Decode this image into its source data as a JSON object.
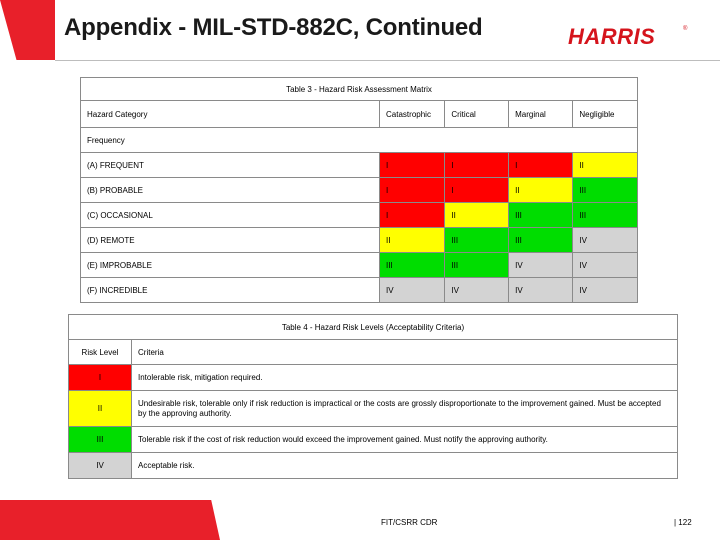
{
  "slide": {
    "title": "Appendix - MIL-STD-882C, Continued",
    "logo_text": "HARRIS"
  },
  "table3": {
    "caption": "Table 3 - Hazard Risk Assessment Matrix",
    "category_label": "Hazard Category",
    "columns": [
      "Catastrophic",
      "Critical",
      "Marginal",
      "Negligible"
    ],
    "frequency_label": "Frequency",
    "rows": [
      {
        "label": "(A) FREQUENT",
        "cells": [
          "I",
          "I",
          "I",
          "II"
        ]
      },
      {
        "label": "(B) PROBABLE",
        "cells": [
          "I",
          "I",
          "II",
          "III"
        ]
      },
      {
        "label": "(C) OCCASIONAL",
        "cells": [
          "I",
          "II",
          "III",
          "III"
        ]
      },
      {
        "label": "(D) REMOTE",
        "cells": [
          "II",
          "III",
          "III",
          "IV"
        ]
      },
      {
        "label": "(E) IMPROBABLE",
        "cells": [
          "III",
          "III",
          "IV",
          "IV"
        ]
      },
      {
        "label": "(F) INCREDIBLE",
        "cells": [
          "IV",
          "IV",
          "IV",
          "IV"
        ]
      }
    ]
  },
  "table4": {
    "caption": "Table 4 - Hazard Risk Levels (Acceptability Criteria)",
    "level_header": "Risk Level",
    "criteria_header": "Criteria",
    "rows": [
      {
        "level": "I",
        "criteria": "Intolerable risk, mitigation required."
      },
      {
        "level": "II",
        "criteria": "Undesirable risk, tolerable only if risk reduction is impractical or the costs are grossly disproportionate to the improvement gained.  Must be accepted by the approving authority."
      },
      {
        "level": "III",
        "criteria": "Tolerable risk if the cost of risk reduction would exceed the improvement gained.  Must notify the approving authority."
      },
      {
        "level": "IV",
        "criteria": "Acceptable risk."
      }
    ]
  },
  "level_colors": {
    "I": "#ff0000",
    "II": "#ffff00",
    "III": "#00dd00",
    "IV": "#d3d3d3"
  },
  "footer": {
    "center": "FIT/CSRR CDR",
    "page": "| 122"
  }
}
